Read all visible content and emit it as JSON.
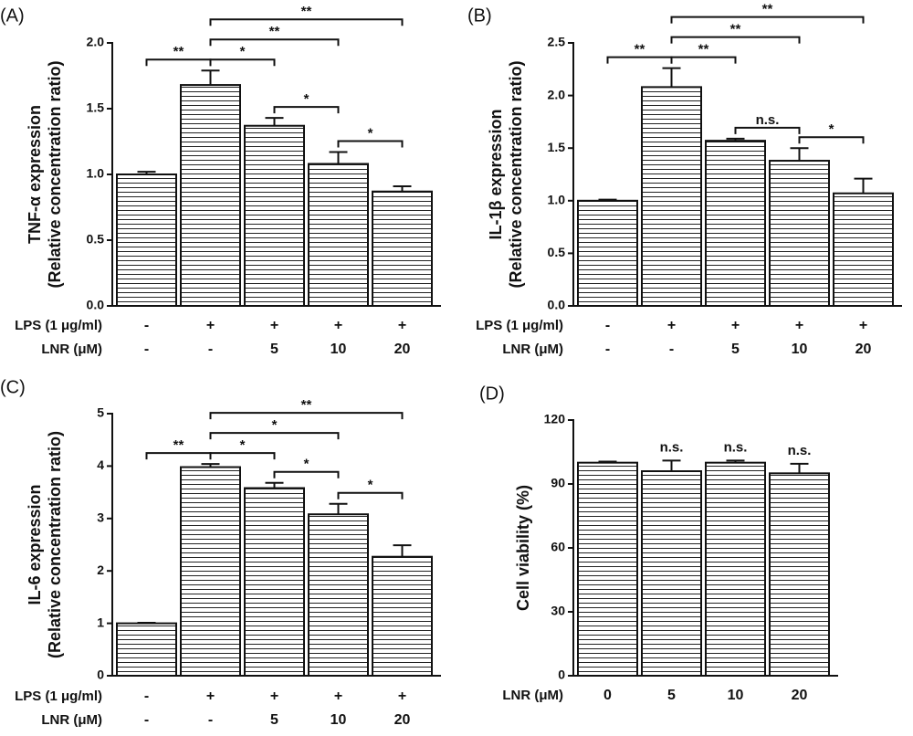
{
  "chart_data": [
    {
      "type": "bar",
      "panel_label": "(A)",
      "ylabel": [
        "TNF-α expression",
        "(Relative concentration ratio)"
      ],
      "rows": [
        {
          "label": "LPS (1 μg/ml)",
          "cells": [
            "-",
            "+",
            "+",
            "+",
            "+"
          ]
        },
        {
          "label": "LNR (μM)",
          "cells": [
            "-",
            "-",
            "5",
            "10",
            "20"
          ]
        }
      ],
      "values": [
        1.0,
        1.68,
        1.37,
        1.08,
        0.87
      ],
      "errors": [
        0.02,
        0.11,
        0.06,
        0.09,
        0.04
      ],
      "ylim": [
        0,
        2.0
      ],
      "yticks": [
        {
          "value": 0,
          "label": "0.0"
        },
        {
          "value": 0.5,
          "label": "0.5"
        },
        {
          "value": 1,
          "label": "1.0"
        },
        {
          "value": 1.5,
          "label": "1.5"
        },
        {
          "value": 2,
          "label": "2.0"
        }
      ],
      "comparisons": [
        {
          "between": [
            0,
            1
          ],
          "label": "**"
        },
        {
          "between": [
            1,
            2
          ],
          "label": "*"
        },
        {
          "between": [
            2,
            3
          ],
          "label": "*"
        },
        {
          "between": [
            3,
            4
          ],
          "label": "*"
        },
        {
          "between": [
            1,
            3
          ],
          "label": "**"
        },
        {
          "between": [
            1,
            4
          ],
          "label": "**"
        }
      ]
    },
    {
      "type": "bar",
      "panel_label": "(B)",
      "ylabel": [
        "IL-1β expression",
        "(Relative concentration ratio)"
      ],
      "rows": [
        {
          "label": "LPS (1 μg/ml)",
          "cells": [
            "-",
            "+",
            "+",
            "+",
            "+"
          ]
        },
        {
          "label": "LNR (μM)",
          "cells": [
            "-",
            "-",
            "5",
            "10",
            "20"
          ]
        }
      ],
      "values": [
        1.0,
        2.08,
        1.57,
        1.38,
        1.07
      ],
      "errors": [
        0.01,
        0.18,
        0.02,
        0.12,
        0.14
      ],
      "ylim": [
        0,
        2.5
      ],
      "yticks": [
        {
          "value": 0,
          "label": "0.0"
        },
        {
          "value": 0.5,
          "label": "0.5"
        },
        {
          "value": 1,
          "label": "1.0"
        },
        {
          "value": 1.5,
          "label": "1.5"
        },
        {
          "value": 2,
          "label": "2.0"
        },
        {
          "value": 2.5,
          "label": "2.5"
        }
      ],
      "comparisons": [
        {
          "between": [
            0,
            1
          ],
          "label": "**"
        },
        {
          "between": [
            1,
            2
          ],
          "label": "**"
        },
        {
          "between": [
            2,
            3
          ],
          "label": "n.s."
        },
        {
          "between": [
            3,
            4
          ],
          "label": "*"
        },
        {
          "between": [
            1,
            3
          ],
          "label": "**"
        },
        {
          "between": [
            1,
            4
          ],
          "label": "**"
        }
      ]
    },
    {
      "type": "bar",
      "panel_label": "(C)",
      "ylabel": [
        "IL-6 expression",
        "(Relative concentration ratio)"
      ],
      "rows": [
        {
          "label": "LPS (1 μg/ml)",
          "cells": [
            "-",
            "+",
            "+",
            "+",
            "+"
          ]
        },
        {
          "label": "LNR (μM)",
          "cells": [
            "-",
            "-",
            "5",
            "10",
            "20"
          ]
        }
      ],
      "values": [
        1.0,
        3.98,
        3.58,
        3.08,
        2.27
      ],
      "errors": [
        0.01,
        0.06,
        0.1,
        0.2,
        0.22
      ],
      "ylim": [
        0,
        5
      ],
      "yticks": [
        0,
        1,
        2,
        3,
        4,
        5
      ],
      "comparisons": [
        {
          "between": [
            0,
            1
          ],
          "label": "**"
        },
        {
          "between": [
            1,
            2
          ],
          "label": "*"
        },
        {
          "between": [
            2,
            3
          ],
          "label": "*"
        },
        {
          "between": [
            3,
            4
          ],
          "label": "*"
        },
        {
          "between": [
            1,
            3
          ],
          "label": "*"
        },
        {
          "between": [
            1,
            4
          ],
          "label": "**"
        }
      ]
    },
    {
      "type": "bar",
      "panel_label": "(D)",
      "ylabel": [
        "Cell viability (%)"
      ],
      "rows": [
        {
          "label": "LNR (μM)",
          "cells": [
            "0",
            "5",
            "10",
            "20"
          ]
        }
      ],
      "values": [
        100,
        96,
        100,
        95
      ],
      "errors": [
        0.5,
        5,
        1,
        4.5
      ],
      "annotations": [
        null,
        "n.s.",
        "n.s.",
        "n.s."
      ],
      "ylim": [
        0,
        120
      ],
      "yticks": [
        0,
        30,
        60,
        90,
        120
      ]
    }
  ]
}
